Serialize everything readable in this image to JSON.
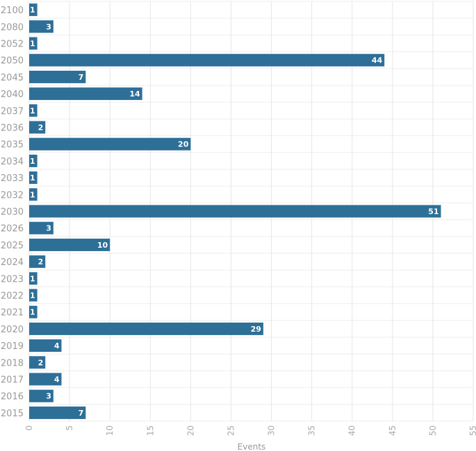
{
  "chart_data": {
    "type": "bar",
    "orientation": "horizontal",
    "categories": [
      "2100",
      "2080",
      "2052",
      "2050",
      "2045",
      "2040",
      "2037",
      "2036",
      "2035",
      "2034",
      "2033",
      "2032",
      "2030",
      "2026",
      "2025",
      "2024",
      "2023",
      "2022",
      "2021",
      "2020",
      "2019",
      "2018",
      "2017",
      "2016",
      "2015"
    ],
    "values": [
      1,
      3,
      1,
      44,
      7,
      14,
      1,
      2,
      20,
      1,
      1,
      1,
      51,
      3,
      10,
      2,
      1,
      1,
      1,
      29,
      4,
      2,
      4,
      3,
      7
    ],
    "xlabel": "Events",
    "xlim": [
      0,
      55
    ],
    "xticks": [
      0,
      5,
      10,
      15,
      20,
      25,
      30,
      35,
      40,
      45,
      50,
      55
    ],
    "grid": true,
    "bar_color": "#2e6f98",
    "label_color": "#ffffff"
  }
}
